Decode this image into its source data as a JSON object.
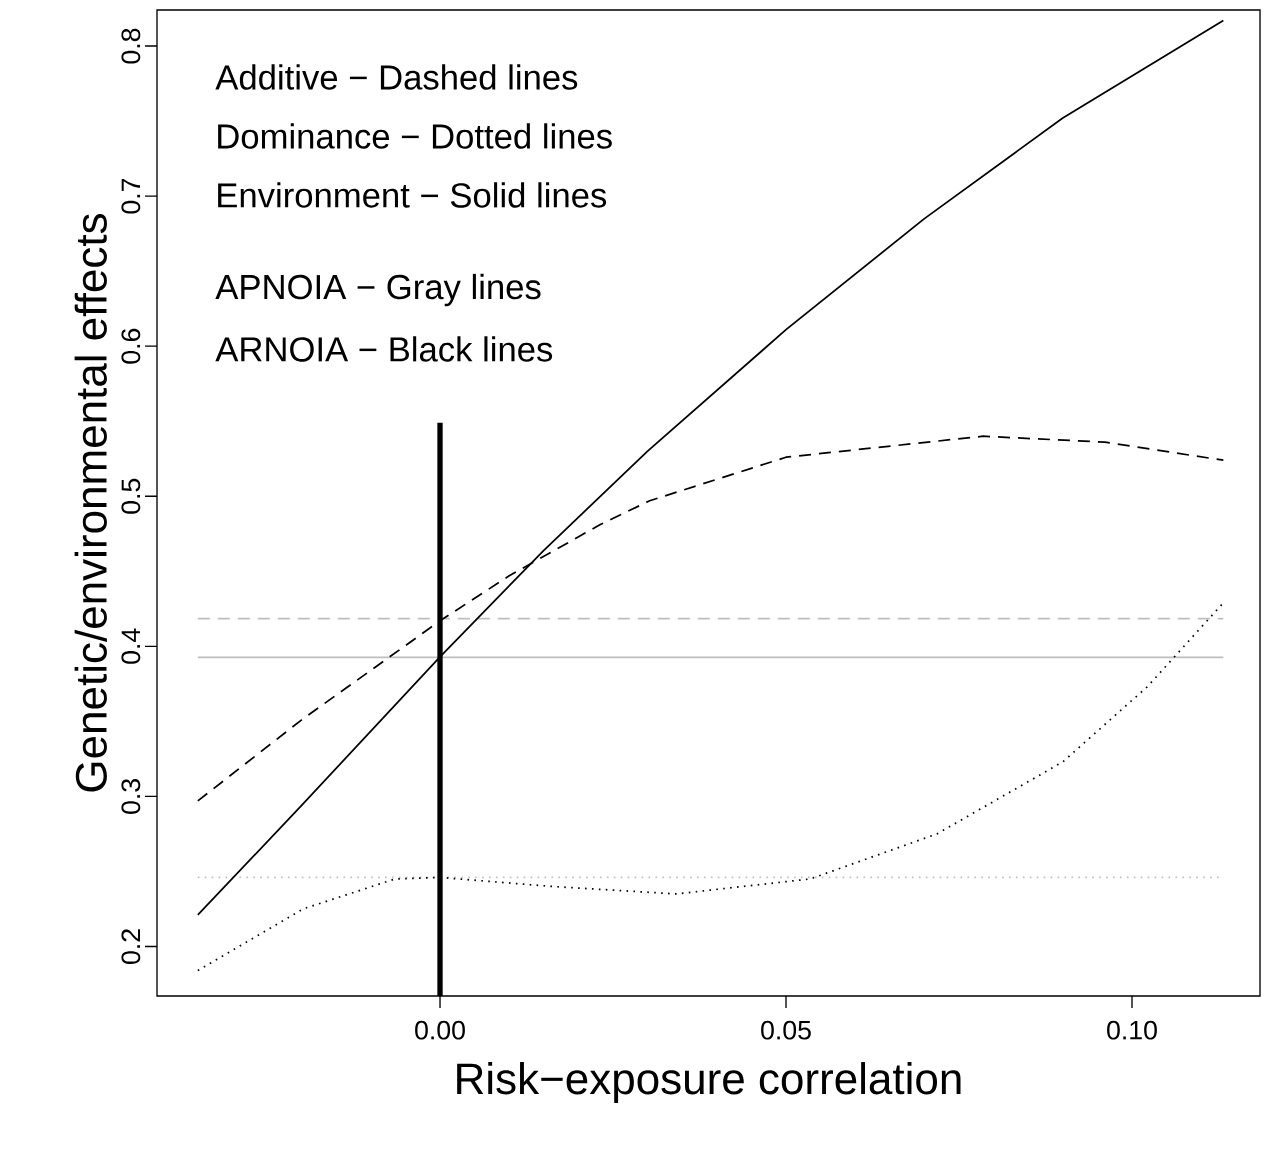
{
  "chart_data": {
    "type": "line",
    "xlabel": "Risk−exposure correlation",
    "ylabel": "Genetic/environmental effects",
    "xlim": [
      -0.0409,
      0.1185
    ],
    "ylim": [
      0.167,
      0.824
    ],
    "xticks": [
      {
        "value": 0,
        "label": "0.00"
      },
      {
        "value": 0.05,
        "label": "0.05"
      },
      {
        "value": 0.1,
        "label": "0.10"
      }
    ],
    "yticks": [
      0.2,
      0.3,
      0.4,
      0.5,
      0.6,
      0.7,
      0.8
    ],
    "annotations": [
      "Additive − Dashed lines",
      "Dominance − Dotted lines",
      "Environment − Solid lines",
      "APNOIA − Gray lines",
      "ARNOIA − Black lines"
    ],
    "series": [
      {
        "color": "#bebebe",
        "line_style": "dashed",
        "x": [
          -0.035,
          0.1132
        ],
        "values": [
          0.4185,
          0.4185
        ]
      },
      {
        "color": "#bebebe",
        "line_style": "solid",
        "x": [
          -0.035,
          0.1132
        ],
        "values": [
          0.3927,
          0.3927
        ]
      },
      {
        "color": "#bebebe",
        "line_style": "dotted",
        "x": [
          -0.035,
          0.1132
        ],
        "values": [
          0.246,
          0.246
        ]
      },
      {
        "color": "#000000",
        "line_style": "solid",
        "x": [
          -0.035,
          -0.02,
          0,
          0.015,
          0.03,
          0.05,
          0.07,
          0.09,
          0.1132
        ],
        "values": [
          0.221,
          0.294,
          0.393,
          0.464,
          0.53,
          0.611,
          0.685,
          0.752,
          0.817
        ]
      },
      {
        "color": "#000000",
        "line_style": "dashed",
        "x": [
          -0.035,
          -0.02,
          0,
          0.01,
          0.0231,
          0.0303,
          0.05,
          0.0785,
          0.0961,
          0.1132
        ],
        "values": [
          0.297,
          0.351,
          0.417,
          0.447,
          0.481,
          0.497,
          0.526,
          0.54,
          0.536,
          0.524
        ]
      },
      {
        "color": "#000000",
        "line_style": "dotted",
        "x": [
          -0.035,
          -0.0198,
          -0.0065,
          0,
          0.0162,
          0.0341,
          0.0535,
          0.0718,
          0.09,
          0.1022,
          0.1132
        ],
        "values": [
          0.184,
          0.225,
          0.245,
          0.246,
          0.24,
          0.235,
          0.245,
          0.275,
          0.323,
          0.373,
          0.429
        ]
      },
      {
        "color": "#000000",
        "line_style": "solid",
        "x": [
          0,
          0
        ],
        "values": [
          0.167,
          0.549
        ]
      }
    ]
  }
}
